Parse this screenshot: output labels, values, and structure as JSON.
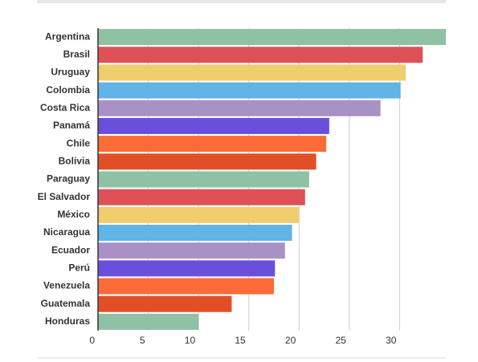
{
  "chart_data": {
    "type": "barh",
    "categories": [
      "Argentina",
      "Brasil",
      "Uruguay",
      "Colombia",
      "Costa Rica",
      "Panamá",
      "Chile",
      "Bolivia",
      "Paraguay",
      "El Salvador",
      "México",
      "Nicaragua",
      "Ecuador",
      "Perú",
      "Venezuela",
      "Guatemala",
      "Honduras"
    ],
    "values": [
      34.6,
      32.3,
      30.6,
      30.1,
      28.1,
      23.0,
      22.7,
      21.7,
      21.0,
      20.6,
      20.0,
      19.3,
      18.6,
      17.6,
      17.5,
      13.3,
      10.0
    ],
    "colors": [
      "#8fc1a4",
      "#de5157",
      "#f0cd6d",
      "#60b4e6",
      "#a991c6",
      "#6a4fdc",
      "#fd6b38",
      "#e24f27",
      "#8fc1a4",
      "#de5157",
      "#f0cd6d",
      "#60b4e6",
      "#a991c6",
      "#6a4fdc",
      "#fd6b38",
      "#e24f27",
      "#8fc1a4"
    ],
    "xlim": [
      0,
      34.6
    ],
    "xticks": [
      0,
      5,
      10,
      15,
      20,
      25,
      30
    ],
    "grid": true
  }
}
